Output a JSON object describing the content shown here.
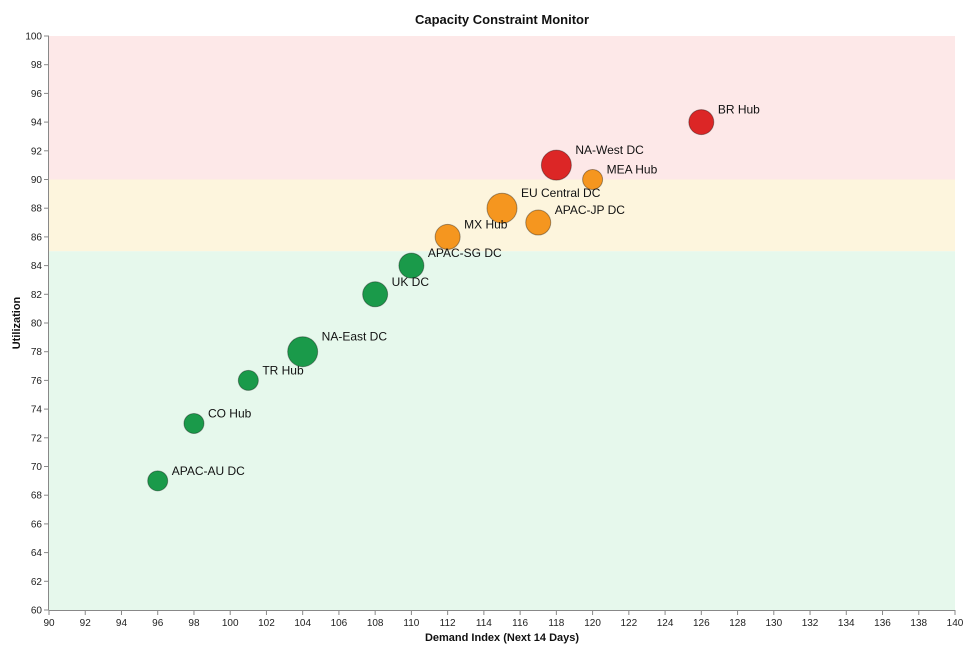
{
  "chart_data": {
    "type": "scatter",
    "title": "Capacity Constraint Monitor",
    "xlabel": "Demand Index (Next 14 Days)",
    "ylabel": "Utilization",
    "xlim": [
      90,
      140
    ],
    "ylim": [
      60,
      100
    ],
    "x_ticks": [
      90,
      92,
      94,
      96,
      98,
      100,
      102,
      104,
      106,
      108,
      110,
      112,
      114,
      116,
      118,
      120,
      122,
      124,
      126,
      128,
      130,
      132,
      134,
      136,
      138,
      140
    ],
    "y_ticks": [
      60,
      62,
      64,
      66,
      68,
      70,
      72,
      74,
      76,
      78,
      80,
      82,
      84,
      86,
      88,
      90,
      92,
      94,
      96,
      98,
      100
    ],
    "grid": false,
    "bands": [
      {
        "from": 90,
        "to": 100,
        "color": "#fde8e8"
      },
      {
        "from": 85,
        "to": 90,
        "color": "#fdf5dd"
      },
      {
        "from": 60,
        "to": 85,
        "color": "#e6f8ec"
      }
    ],
    "status_colors": {
      "green": "#1a9a4a",
      "orange": "#f5961f",
      "red": "#dc2626"
    },
    "points": [
      {
        "label": "APAC-AU DC",
        "x": 96,
        "y": 69,
        "size": "small",
        "status": "green"
      },
      {
        "label": "CO Hub",
        "x": 98,
        "y": 73,
        "size": "small",
        "status": "green"
      },
      {
        "label": "TR Hub",
        "x": 101,
        "y": 76,
        "size": "small",
        "status": "green"
      },
      {
        "label": "NA-East DC",
        "x": 104,
        "y": 78,
        "size": "large",
        "status": "green"
      },
      {
        "label": "UK DC",
        "x": 108,
        "y": 82,
        "size": "medium",
        "status": "green"
      },
      {
        "label": "APAC-SG DC",
        "x": 110,
        "y": 84,
        "size": "medium",
        "status": "green"
      },
      {
        "label": "MX Hub",
        "x": 112,
        "y": 86,
        "size": "medium",
        "status": "orange"
      },
      {
        "label": "EU Central DC",
        "x": 115,
        "y": 88,
        "size": "large",
        "status": "orange"
      },
      {
        "label": "APAC-JP DC",
        "x": 117,
        "y": 87,
        "size": "medium",
        "status": "orange"
      },
      {
        "label": "NA-West DC",
        "x": 118,
        "y": 91,
        "size": "large",
        "status": "red"
      },
      {
        "label": "MEA Hub",
        "x": 120,
        "y": 90,
        "size": "small",
        "status": "orange"
      },
      {
        "label": "BR Hub",
        "x": 126,
        "y": 94,
        "size": "medium",
        "status": "red"
      }
    ]
  }
}
